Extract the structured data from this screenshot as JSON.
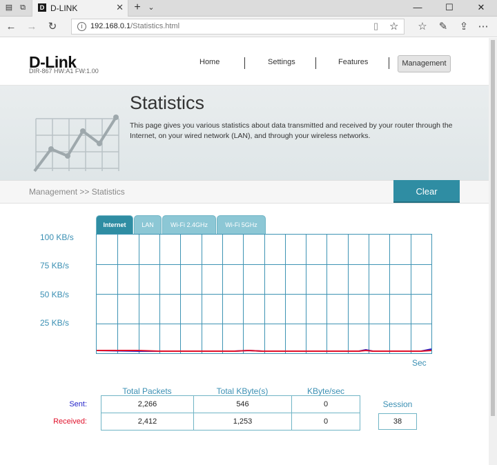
{
  "browser": {
    "tab_title": "D-LINK",
    "tab_favicon": "D",
    "url_host": "192.168.0.1",
    "url_path": "/Statistics.html",
    "icons": [
      "tab-preview-icon",
      "set-aside-icon",
      "close-icon",
      "new-tab-icon",
      "tab-list-icon",
      "minimize-icon",
      "maximize-icon",
      "close-window-icon",
      "back-icon",
      "forward-icon",
      "refresh-icon",
      "reading-view-icon",
      "favorite-star-icon",
      "favorites-hub-icon",
      "pen-icon",
      "share-icon",
      "more-icon"
    ]
  },
  "header": {
    "logo": "D-Link",
    "model": "DIR-867 HW:A1 FW:1.00",
    "menu": {
      "home": "Home",
      "settings": "Settings",
      "features": "Features",
      "management": "Management"
    }
  },
  "hero": {
    "title": "Statistics",
    "description": "This page gives you various statistics about data transmitted and received by your router through the Internet, on your wired network (LAN), and through your wireless networks."
  },
  "breadcrumb": "Management >> Statistics",
  "clear_label": "Clear",
  "graph": {
    "tabs": [
      "Internet",
      "LAN",
      "Wi-Fi 2.4GHz",
      "Wi-Fi 5GHz"
    ],
    "active_tab": "Internet",
    "y_labels": [
      "100 KB/s",
      "75 KB/s",
      "50 KB/s",
      "25 KB/s"
    ],
    "x_label": "Sec",
    "colors": {
      "sent": "#1f1fc8",
      "received": "#e0102a",
      "grid": "#3d93b3"
    }
  },
  "stats": {
    "headers": {
      "packets": "Total Packets",
      "kbytes": "Total KByte(s)",
      "kbsec": "KByte/sec"
    },
    "sent": {
      "label": "Sent:",
      "packets": "2,266",
      "kbytes": "546",
      "kbsec": "0"
    },
    "received": {
      "label": "Received:",
      "packets": "2,412",
      "kbytes": "1,253",
      "kbsec": "0"
    },
    "session_label": "Session",
    "session_value": "38"
  }
}
